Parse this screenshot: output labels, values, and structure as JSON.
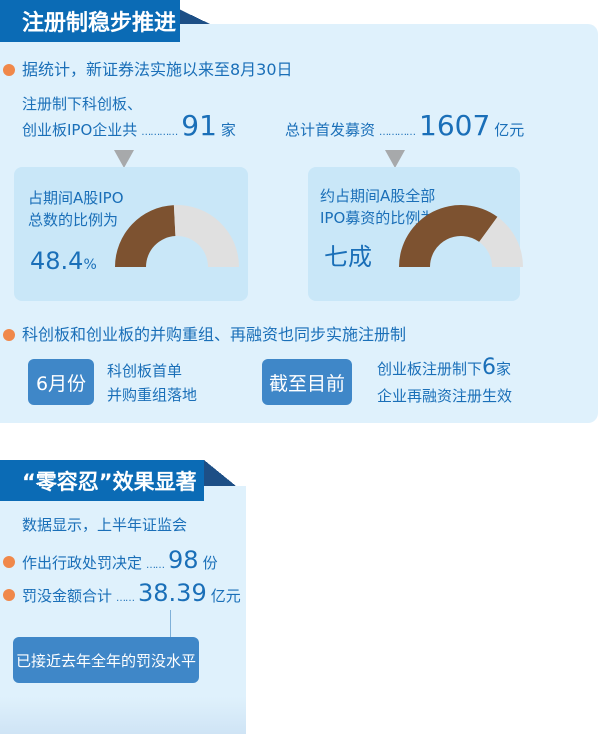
{
  "section1": {
    "title": "注册制稳步推进",
    "bullet1": "据统计，新证券法实施以来至8月30日",
    "ipo_count_line1": "注册制下科创板、",
    "ipo_count_line2": "创业板IPO企业共",
    "dots": "…………",
    "ipo_count_value": "91",
    "ipo_count_unit": "家",
    "raise_label": "总计首发募资",
    "raise_value": "1607",
    "raise_unit": "亿元",
    "card1": {
      "line1": "占期间A股IPO",
      "line2": "总数的比例为",
      "value": "48.4",
      "unit": "%",
      "fraction": 0.484
    },
    "card2": {
      "line1": "约占期间A股全部",
      "line2": "IPO募资的比例为",
      "value": "七成",
      "fraction": 0.7
    },
    "gauge_colors": {
      "filled": "#7d5230",
      "empty": "#e0e0e0"
    },
    "bullet2": "科创板和创业板的并购重组、再融资也同步实施注册制",
    "tag1": "6月份",
    "tag1_text1": "科创板首单",
    "tag1_text2": "并购重组落地",
    "tag2": "截至目前",
    "tag2_text1_a": "创业板注册制下",
    "tag2_text1_num": "6",
    "tag2_text1_b": "家",
    "tag2_text2": "企业再融资注册生效"
  },
  "section2": {
    "title": "“零容忍”效果显著",
    "intro": "数据显示，上半年证监会",
    "item1_label": "作出行政处罚决定",
    "item1_dots": "……",
    "item1_value": "98",
    "item1_unit": "份",
    "item2_label": "罚没金额合计",
    "item2_dots": "……",
    "item2_value": "38.39",
    "item2_unit": "亿元",
    "note": "已接近去年全年的罚没水平"
  },
  "colors": {
    "brand": "#0b6bb5",
    "accent": "#f0884a",
    "button": "#3f87c8",
    "panel": "#dff1fc"
  }
}
